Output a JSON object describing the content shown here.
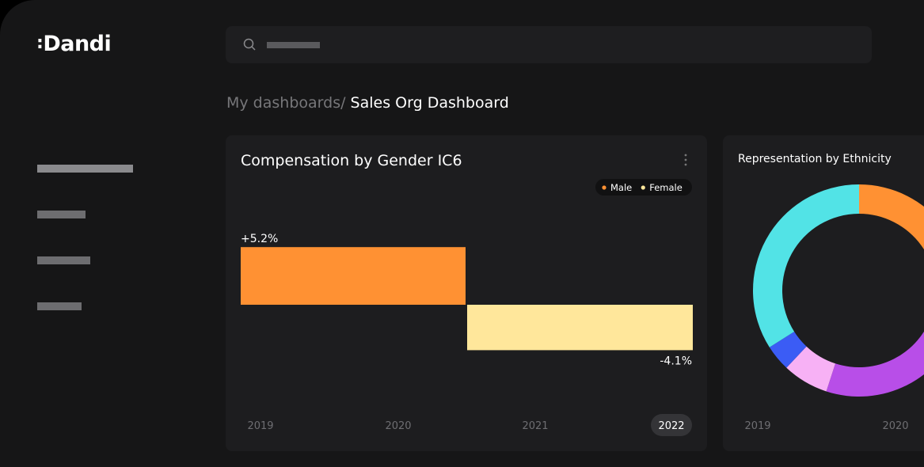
{
  "logo": "Dandi",
  "breadcrumb": {
    "parent": "My dashboards/",
    "current": "Sales Org Dashboard"
  },
  "cards": [
    {
      "title": "Compensation by Gender IC6",
      "legend": [
        {
          "name": "Male",
          "color": "#ff9133"
        },
        {
          "name": "Female",
          "color": "#ffe79b"
        }
      ],
      "chart": {
        "type": "bar",
        "series": [
          {
            "name": "Male",
            "value": 5.2,
            "value_label": "+5.2%"
          },
          {
            "name": "Female",
            "value": -4.1,
            "value_label": "-4.1%"
          }
        ]
      },
      "years": [
        "2019",
        "2020",
        "2021",
        "2022"
      ],
      "selected_year_index": 3
    },
    {
      "title": "Representation by Ethnicity",
      "chart": {
        "type": "pie",
        "segments": [
          {
            "color": "#ff9133",
            "value": 30
          },
          {
            "color": "#b84ee8",
            "value": 25
          },
          {
            "color": "#f7b1f5",
            "value": 7
          },
          {
            "color": "#3b5cf5",
            "value": 4
          },
          {
            "color": "#52e3e6",
            "value": 34
          }
        ]
      },
      "years": [
        "2019",
        "2020"
      ]
    }
  ]
}
